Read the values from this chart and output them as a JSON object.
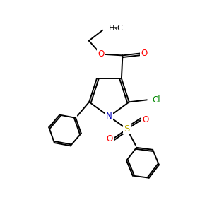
{
  "background_color": "#ffffff",
  "atom_colors": {
    "C": "#000000",
    "O": "#ff0000",
    "N": "#0000bb",
    "S": "#bbaa00",
    "Cl": "#008800",
    "H": "#000000"
  },
  "bond_color": "#000000",
  "bond_width": 1.4,
  "figsize": [
    3.0,
    3.0
  ],
  "dpi": 100
}
